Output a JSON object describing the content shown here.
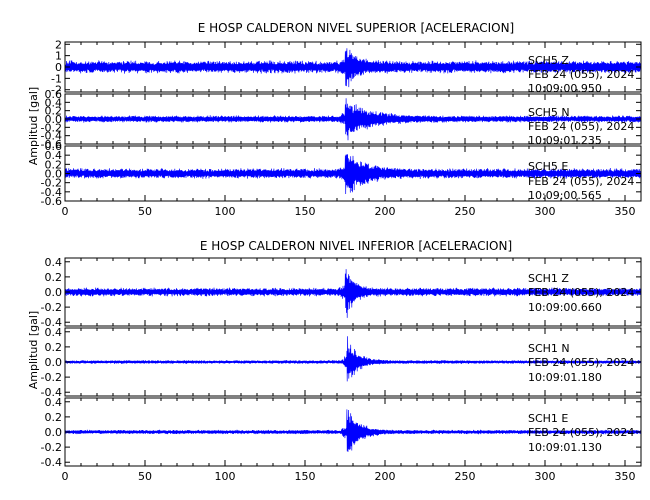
{
  "chart_data": [
    {
      "type": "line",
      "title": "E HOSP CALDERON NIVEL SUPERIOR [ACELERACION]",
      "ylabel": "Amplitud [gal]",
      "xlim": [
        0,
        360
      ],
      "xticks": [
        "0",
        "50",
        "100",
        "150",
        "200",
        "250",
        "300",
        "350"
      ],
      "color": "#0000ff",
      "series": [
        {
          "name": "SCH5 Z",
          "ylim": [
            -2.2,
            2.2
          ],
          "yticks": [
            "2",
            "1",
            "0",
            "-1",
            "-2"
          ],
          "noise": 0.6,
          "peak": 2.0,
          "onset": 175,
          "decay": 6,
          "date": "FEB 24 (055), 2024",
          "time": "10:09:00.950"
        },
        {
          "name": "SCH5 N",
          "ylim": [
            -0.6,
            0.6
          ],
          "yticks": [
            "0.6",
            "0.4",
            "0.2",
            "0.0",
            "-0.2",
            "-0.4",
            "-0.6"
          ],
          "noise": 0.09,
          "peak": 0.5,
          "onset": 175,
          "decay": 14,
          "date": "FEB 24 (055), 2024",
          "time": "10:09:01.235"
        },
        {
          "name": "SCH5 E",
          "ylim": [
            -0.6,
            0.6
          ],
          "yticks": [
            "0.6",
            "0.4",
            "0.2",
            "0.0",
            "-0.2",
            "-0.4",
            "-0.6"
          ],
          "noise": 0.12,
          "peak": 0.55,
          "onset": 175,
          "decay": 10,
          "date": "FEB 24 (055), 2024",
          "time": "10:09:00.565"
        }
      ]
    },
    {
      "type": "line",
      "title": "E HOSP CALDERON NIVEL INFERIOR [ACELERACION]",
      "ylabel": "Amplitud [gal]",
      "xlim": [
        0,
        360
      ],
      "xticks": [
        "0",
        "50",
        "100",
        "150",
        "200",
        "250",
        "300",
        "350"
      ],
      "color": "#0000ff",
      "series": [
        {
          "name": "SCH1 Z",
          "ylim": [
            -0.45,
            0.45
          ],
          "yticks": [
            "0.4",
            "0.2",
            "0.0",
            "-0.2",
            "-0.4"
          ],
          "noise": 0.06,
          "peak": 0.42,
          "onset": 175,
          "decay": 5,
          "date": "FEB 24 (055), 2024",
          "time": "10:09:00.660"
        },
        {
          "name": "SCH1 N",
          "ylim": [
            -0.45,
            0.45
          ],
          "yticks": [
            "0.4",
            "0.2",
            "0.0",
            "-0.2",
            "-0.4"
          ],
          "noise": 0.025,
          "peak": 0.4,
          "onset": 176,
          "decay": 6,
          "date": "FEB 24 (055), 2024",
          "time": "10:09:01.180"
        },
        {
          "name": "SCH1 E",
          "ylim": [
            -0.45,
            0.45
          ],
          "yticks": [
            "0.4",
            "0.2",
            "0.0",
            "-0.2",
            "-0.4"
          ],
          "noise": 0.03,
          "peak": 0.4,
          "onset": 176,
          "decay": 7,
          "date": "FEB 24 (055), 2024",
          "time": "10:09:01.130"
        }
      ]
    }
  ]
}
